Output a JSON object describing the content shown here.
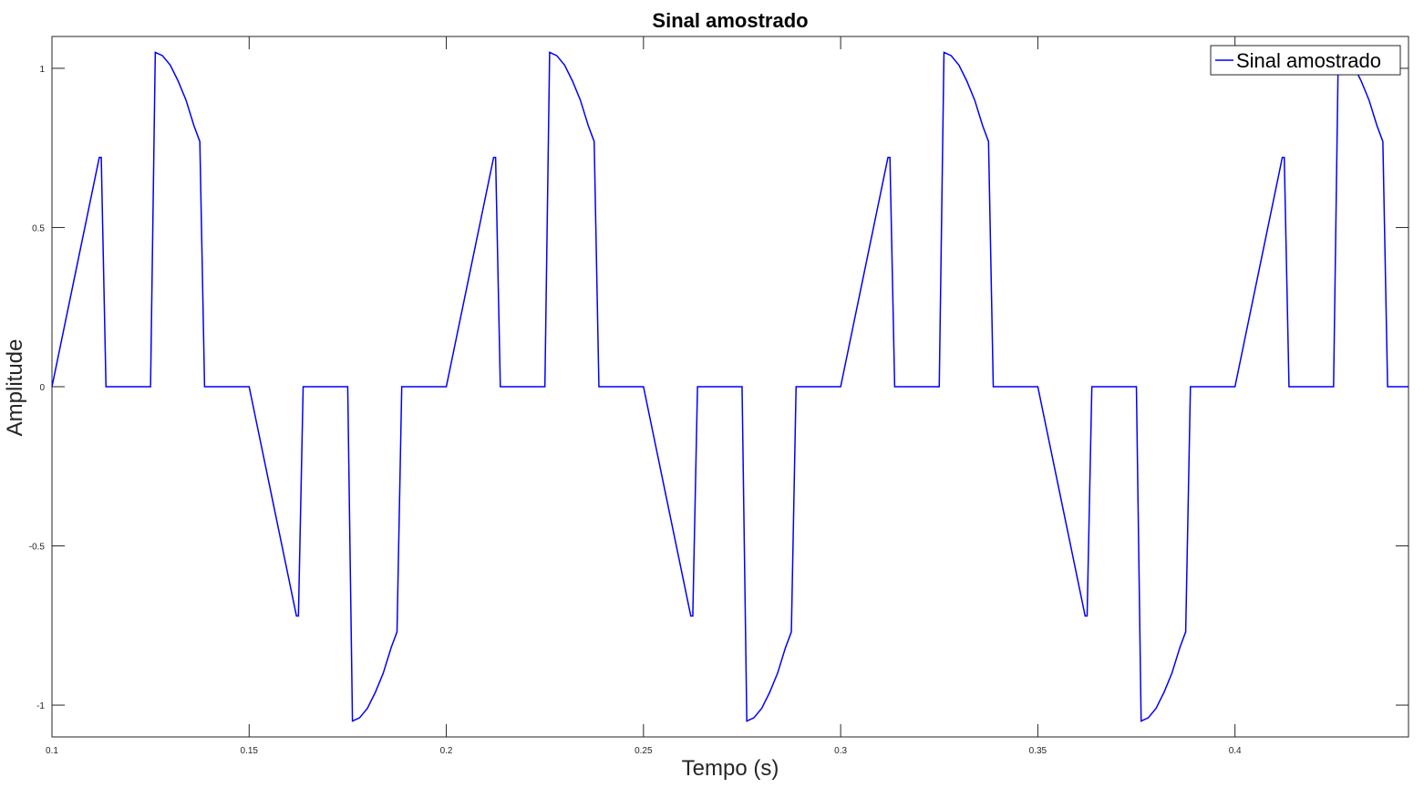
{
  "chart_data": {
    "type": "line",
    "title": "Sinal amostrado",
    "xlabel": "Tempo (s)",
    "ylabel": "Amplitude",
    "xlim": [
      0.1,
      0.444
    ],
    "ylim": [
      -1.1,
      1.1
    ],
    "grid": false,
    "legend_position": "top-right",
    "x_ticks": [
      0.1,
      0.15,
      0.2,
      0.25,
      0.3,
      0.35,
      0.4
    ],
    "x_tick_labels": [
      "0.1",
      "0.15",
      "0.2",
      "0.25",
      "0.3",
      "0.35",
      "0.4"
    ],
    "y_ticks": [
      -1,
      -0.5,
      0,
      0.5,
      1
    ],
    "y_tick_labels": [
      "-1",
      "-0.5",
      "0",
      "0.5",
      "1"
    ],
    "series": [
      {
        "name": "Sinal amostrado",
        "color": "#0000ff",
        "x": [
          0.1,
          0.103,
          0.106,
          0.109,
          0.112,
          0.1125,
          0.1137,
          0.125,
          0.1262,
          0.128,
          0.13,
          0.132,
          0.134,
          0.136,
          0.1375,
          0.1387,
          0.15,
          0.153,
          0.156,
          0.159,
          0.162,
          0.1625,
          0.1637,
          0.175,
          0.1762,
          0.178,
          0.18,
          0.182,
          0.184,
          0.186,
          0.1875,
          0.1887,
          0.2,
          0.203,
          0.206,
          0.209,
          0.212,
          0.2125,
          0.2137,
          0.225,
          0.2262,
          0.228,
          0.23,
          0.232,
          0.234,
          0.236,
          0.2375,
          0.2387,
          0.25,
          0.253,
          0.256,
          0.259,
          0.262,
          0.2625,
          0.2637,
          0.275,
          0.2762,
          0.278,
          0.28,
          0.282,
          0.284,
          0.286,
          0.2875,
          0.2887,
          0.3,
          0.303,
          0.306,
          0.309,
          0.312,
          0.3125,
          0.3137,
          0.325,
          0.3262,
          0.328,
          0.33,
          0.332,
          0.334,
          0.336,
          0.3375,
          0.3387,
          0.35,
          0.353,
          0.356,
          0.359,
          0.362,
          0.3625,
          0.3637,
          0.375,
          0.3762,
          0.378,
          0.38,
          0.382,
          0.384,
          0.386,
          0.3875,
          0.3887,
          0.4,
          0.403,
          0.406,
          0.409,
          0.412,
          0.4125,
          0.4137,
          0.425,
          0.4262,
          0.428,
          0.43,
          0.432,
          0.434,
          0.436,
          0.4375,
          0.4387,
          0.444
        ],
        "y": [
          0,
          0.18,
          0.36,
          0.54,
          0.72,
          0.72,
          0,
          0,
          1.05,
          1.04,
          1.01,
          0.96,
          0.9,
          0.82,
          0.77,
          0,
          0,
          -0.18,
          -0.36,
          -0.54,
          -0.72,
          -0.72,
          0,
          0,
          -1.05,
          -1.04,
          -1.01,
          -0.96,
          -0.9,
          -0.82,
          -0.77,
          0,
          0,
          0.18,
          0.36,
          0.54,
          0.72,
          0.72,
          0,
          0,
          1.05,
          1.04,
          1.01,
          0.96,
          0.9,
          0.82,
          0.77,
          0,
          0,
          -0.18,
          -0.36,
          -0.54,
          -0.72,
          -0.72,
          0,
          0,
          -1.05,
          -1.04,
          -1.01,
          -0.96,
          -0.9,
          -0.82,
          -0.77,
          0,
          0,
          0.18,
          0.36,
          0.54,
          0.72,
          0.72,
          0,
          0,
          1.05,
          1.04,
          1.01,
          0.96,
          0.9,
          0.82,
          0.77,
          0,
          0,
          -0.18,
          -0.36,
          -0.54,
          -0.72,
          -0.72,
          0,
          0,
          -1.05,
          -1.04,
          -1.01,
          -0.96,
          -0.9,
          -0.82,
          -0.77,
          0,
          0,
          0.18,
          0.36,
          0.54,
          0.72,
          0.72,
          0,
          0,
          1.05,
          1.04,
          1.01,
          0.96,
          0.9,
          0.82,
          0.77,
          0,
          0
        ]
      }
    ]
  }
}
